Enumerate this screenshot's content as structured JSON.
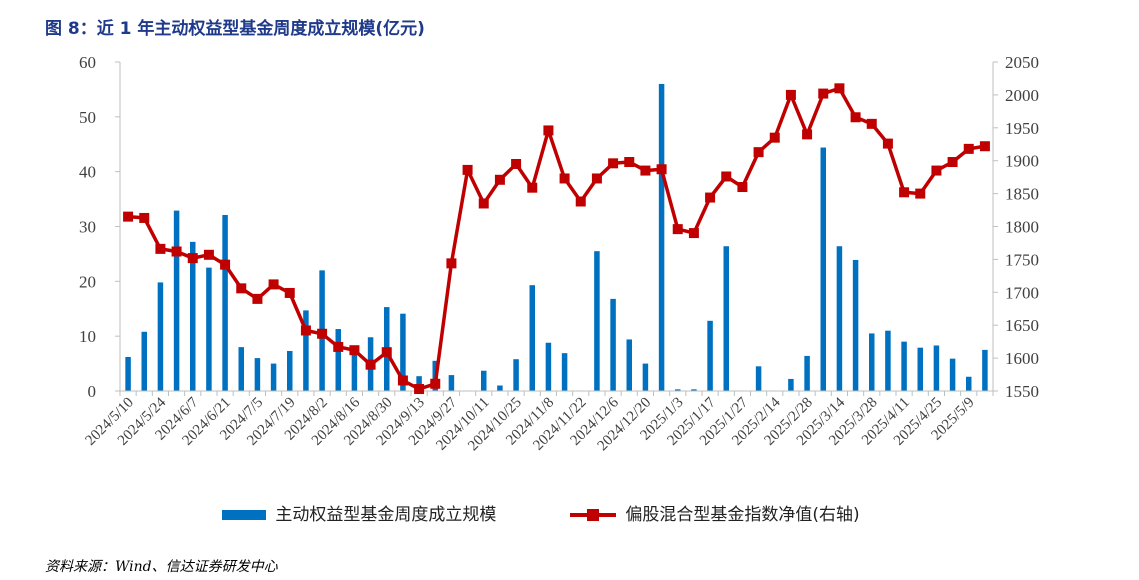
{
  "header": {
    "title": "图 8：近 1 年主动权益型基金周度成立规模(亿元)"
  },
  "footer": {
    "source": "资料来源：Wind、信达证券研发中心"
  },
  "colors": {
    "bar": "#0070c0",
    "line": "#c00000",
    "axis": "#bfbfbf",
    "text": "#404040"
  },
  "chart_data": {
    "type": "bar",
    "title": "",
    "legend_placement": "bottom",
    "grid": false,
    "y_left": {
      "min": 0,
      "max": 60,
      "ticks": [
        0,
        10,
        20,
        30,
        40,
        50,
        60
      ]
    },
    "y_right": {
      "min": 1550,
      "max": 2050,
      "ticks": [
        1550,
        1600,
        1650,
        1700,
        1750,
        1800,
        1850,
        1900,
        1950,
        2000,
        2050
      ]
    },
    "x_tick_labels": [
      "2024/5/10",
      "2024/5/24",
      "2024/6/7",
      "2024/6/21",
      "2024/7/5",
      "2024/7/19",
      "2024/8/2",
      "2024/8/16",
      "2024/8/30",
      "2024/9/13",
      "2024/9/27",
      "2024/10/11",
      "2024/10/25",
      "2024/11/8",
      "2024/11/22",
      "2024/12/6",
      "2024/12/20",
      "2025/1/3",
      "2025/1/17",
      "2025/1/27",
      "2025/2/14",
      "2025/2/28",
      "2025/3/14",
      "2025/3/28",
      "2025/4/11",
      "2025/4/25",
      "2025/5/9"
    ],
    "series": [
      {
        "name": "主动权益型基金周度成立规模",
        "type": "bar",
        "axis": "left",
        "values": [
          6.2,
          10.8,
          19.8,
          32.9,
          27.2,
          22.5,
          32.1,
          8.0,
          6.0,
          5.0,
          7.3,
          14.7,
          22.0,
          11.3,
          7.5,
          9.8,
          15.3,
          14.1,
          2.7,
          5.5,
          2.9,
          0,
          3.7,
          1.0,
          5.8,
          19.3,
          8.8,
          6.9,
          0,
          25.5,
          16.8,
          9.4,
          5.0,
          56.0,
          0.3,
          0.3,
          12.8,
          26.4,
          0,
          4.5,
          0,
          2.2,
          6.4,
          44.4,
          26.4,
          23.9,
          10.5,
          11.0,
          9.0,
          7.9,
          8.3,
          5.9,
          2.6,
          7.5
        ]
      },
      {
        "name": "偏股混合型基金指数净值(右轴)",
        "type": "line",
        "axis": "right",
        "values": [
          1815,
          1813,
          1766,
          1762,
          1752,
          1757,
          1742,
          1706,
          1690,
          1712,
          1699,
          1642,
          1637,
          1617,
          1612,
          1590,
          1609,
          1566,
          1553,
          1561,
          1744,
          1886,
          1835,
          1871,
          1895,
          1859,
          1946,
          1873,
          1838,
          1873,
          1896,
          1898,
          1885,
          1887,
          1796,
          1790,
          1844,
          1876,
          1860,
          1913,
          1935,
          2000,
          1940,
          2002,
          2010,
          1966,
          1956,
          1926,
          1852,
          1850,
          1885,
          1898,
          1918,
          1922
        ]
      }
    ]
  }
}
